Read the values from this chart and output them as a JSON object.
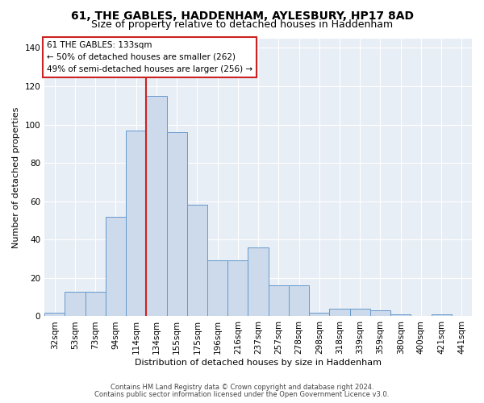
{
  "title1": "61, THE GABLES, HADDENHAM, AYLESBURY, HP17 8AD",
  "title2": "Size of property relative to detached houses in Haddenham",
  "xlabel": "Distribution of detached houses by size in Haddenham",
  "ylabel": "Number of detached properties",
  "categories": [
    "32sqm",
    "53sqm",
    "73sqm",
    "94sqm",
    "114sqm",
    "134sqm",
    "155sqm",
    "175sqm",
    "196sqm",
    "216sqm",
    "237sqm",
    "257sqm",
    "278sqm",
    "298sqm",
    "318sqm",
    "339sqm",
    "359sqm",
    "380sqm",
    "400sqm",
    "421sqm",
    "441sqm"
  ],
  "values": [
    2,
    13,
    13,
    52,
    97,
    115,
    96,
    58,
    29,
    29,
    36,
    16,
    16,
    2,
    4,
    4,
    3,
    1,
    0,
    1,
    0
  ],
  "bar_color": "#ccdaeb",
  "bar_edge_color": "#6699cc",
  "vline_color": "#cc2222",
  "annotation_text": "61 THE GABLES: 133sqm\n← 50% of detached houses are smaller (262)\n49% of semi-detached houses are larger (256) →",
  "annotation_box_color": "#ffffff",
  "annotation_box_edge_color": "#cc2222",
  "ylim": [
    0,
    145
  ],
  "footnote1": "Contains HM Land Registry data © Crown copyright and database right 2024.",
  "footnote2": "Contains public sector information licensed under the Open Government Licence v3.0.",
  "background_color": "#e8eef5",
  "title1_fontsize": 10,
  "title2_fontsize": 9,
  "tick_fontsize": 7.5,
  "ylabel_fontsize": 8,
  "xlabel_fontsize": 8,
  "annotation_fontsize": 7.5,
  "footnote_fontsize": 6
}
